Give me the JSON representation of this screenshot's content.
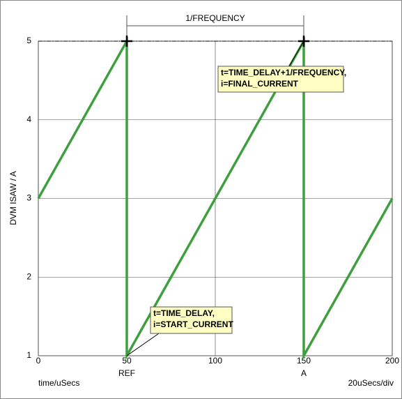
{
  "chart_data": {
    "type": "line",
    "y_label": "DVM ISAW / A",
    "x_label": "time/uSecs",
    "x_scale_note": "20uSecs/div",
    "x": [
      0,
      50,
      50,
      150,
      150,
      200
    ],
    "series": [
      {
        "color": "#3f9f3f",
        "values": [
          3,
          5,
          1,
          5,
          1,
          3
        ]
      }
    ],
    "xlim": [
      0,
      200
    ],
    "xticks": [
      0,
      50,
      100,
      150,
      200
    ],
    "ylim": [
      1,
      5
    ],
    "yticks": [
      1,
      2,
      3,
      4,
      5
    ],
    "grid": true,
    "cursors": [
      {
        "label": "REF",
        "x": 50
      },
      {
        "label": "A",
        "x": 150
      }
    ],
    "measurement": "1/FREQUENCY",
    "annotations": [
      {
        "lines": [
          "t=TIME_DELAY+1/FREQUENCY,",
          "i=FINAL_CURRENT"
        ],
        "point": [
          150,
          5
        ]
      },
      {
        "lines": [
          "t=TIME_DELAY,",
          "i=START_CURRENT"
        ],
        "point": [
          50,
          1
        ]
      }
    ]
  }
}
